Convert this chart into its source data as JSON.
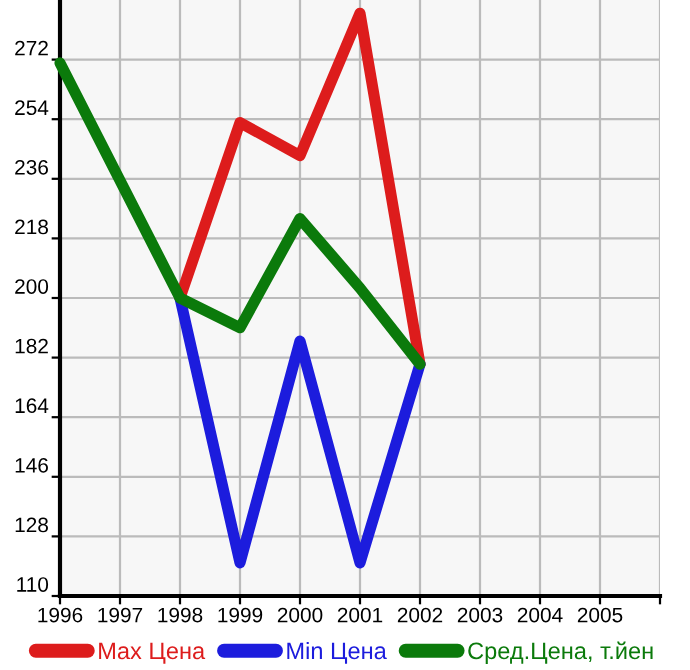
{
  "chart_data": {
    "type": "line",
    "x": [
      1996,
      1997,
      1998,
      1999,
      2000,
      2001,
      2002
    ],
    "series": [
      {
        "name": "Max Цена",
        "color": "#dd1c1c",
        "values": [
          null,
          null,
          200,
          253,
          243,
          286,
          180
        ]
      },
      {
        "name": "Min Цена",
        "color": "#1c1cdd",
        "values": [
          null,
          null,
          200,
          120,
          187,
          120,
          180
        ]
      },
      {
        "name": "Сред.Цена, т.йен",
        "color": "#0b7a0b",
        "values": [
          271,
          null,
          200,
          191,
          224,
          203,
          180
        ]
      }
    ],
    "xlim": [
      1996,
      2006
    ],
    "xticks": [
      1996,
      1997,
      1998,
      1999,
      2000,
      2001,
      2002,
      2003,
      2004,
      2005,
      {
        "value": 2006,
        "label": null
      }
    ],
    "ylim": [
      110,
      290
    ],
    "yticks": [
      110,
      128,
      146,
      164,
      182,
      200,
      218,
      236,
      254,
      272
    ],
    "grid": true,
    "legend": "bottom",
    "marker": "none",
    "line_style": "solid"
  }
}
